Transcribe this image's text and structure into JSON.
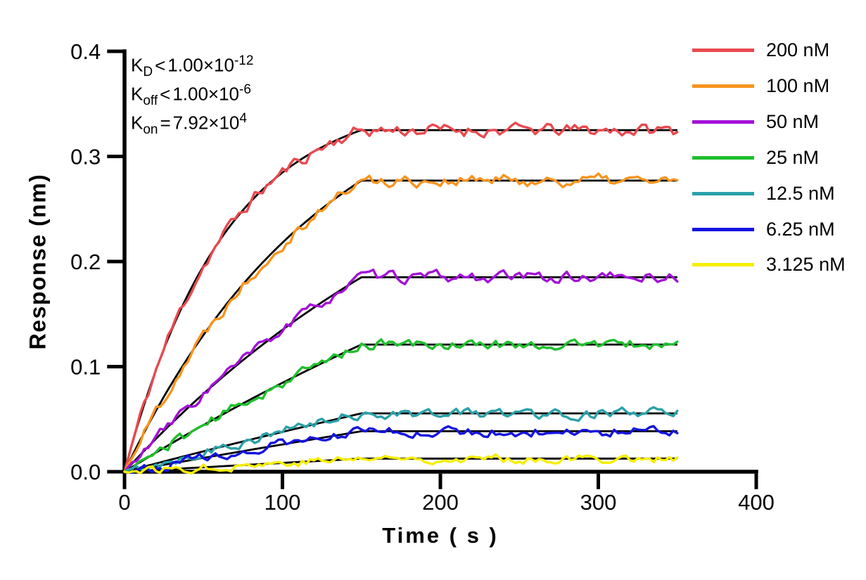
{
  "figure": {
    "background": "#FFFFFF",
    "text_color": "#000000"
  },
  "chart_data": {
    "type": "line",
    "title": "",
    "xlabel": "Time ( s )",
    "ylabel": "Response (nm)",
    "xlim": [
      0,
      400
    ],
    "ylim": [
      0,
      0.4
    ],
    "x_tick_labels": [
      "0",
      "100",
      "200",
      "300",
      "400"
    ],
    "x_tick_values": [
      0,
      100,
      200,
      300,
      400
    ],
    "y_tick_labels": [
      "0.0",
      "0.1",
      "0.2",
      "0.3",
      "0.4"
    ],
    "y_tick_values": [
      0,
      0.1,
      0.2,
      0.3,
      0.4
    ],
    "grid": false,
    "legend_position": "top-right",
    "association_end_s": 150,
    "trace_end_s": 350,
    "fit_line_color": "#000000",
    "kinetics_annotations": [
      {
        "k": "K",
        "sub": "D",
        "op": "<",
        "mantissa": "1.00×10",
        "exp": "-12"
      },
      {
        "k": "K",
        "sub": "off",
        "op": "<",
        "mantissa": "1.00×10",
        "exp": "-6"
      },
      {
        "k": "K",
        "sub": "on",
        "op": "=",
        "mantissa": "7.92×10",
        "exp": "4"
      }
    ],
    "series": [
      {
        "name": "200 nM",
        "concentration_nM": 200,
        "color": "#E9494F",
        "plateau_response_nm": 0.325,
        "k_obs_per_s": 0.0158,
        "noise_nm": 0.005
      },
      {
        "name": "100 nM",
        "concentration_nM": 100,
        "color": "#F8941D",
        "plateau_response_nm": 0.277,
        "k_obs_per_s": 0.0079,
        "noise_nm": 0.0048
      },
      {
        "name": "50 nM",
        "concentration_nM": 50,
        "color": "#A312D7",
        "plateau_response_nm": 0.185,
        "k_obs_per_s": 0.00396,
        "noise_nm": 0.0043
      },
      {
        "name": "25 nM",
        "concentration_nM": 25,
        "color": "#1FBF2C",
        "plateau_response_nm": 0.121,
        "k_obs_per_s": 0.00198,
        "noise_nm": 0.004
      },
      {
        "name": "12.5 nM",
        "concentration_nM": 12.5,
        "color": "#2AA1A9",
        "plateau_response_nm": 0.0555,
        "k_obs_per_s": 0.00099,
        "noise_nm": 0.004
      },
      {
        "name": "6.25 nM",
        "concentration_nM": 6.25,
        "color": "#1413DF",
        "plateau_response_nm": 0.0385,
        "k_obs_per_s": 0.000495,
        "noise_nm": 0.0037
      },
      {
        "name": "3.125 nM",
        "concentration_nM": 3.125,
        "color": "#F6EE00",
        "plateau_response_nm": 0.0125,
        "k_obs_per_s": 0.000248,
        "noise_nm": 0.0033
      }
    ]
  }
}
